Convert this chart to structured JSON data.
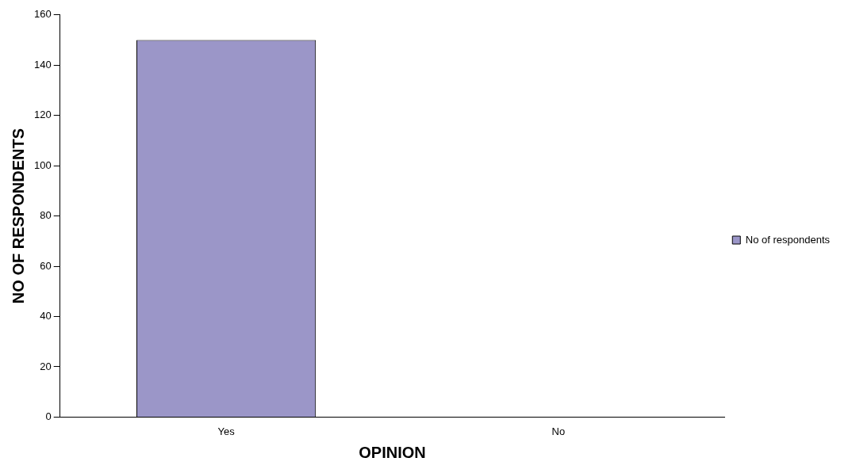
{
  "chart_data": {
    "type": "bar",
    "xlabel": "OPINION",
    "ylabel": "NO OF RESPONDENTS",
    "categories": [
      "Yes",
      "No"
    ],
    "series": [
      {
        "name": "No of respondents",
        "color": "#9b96c8",
        "values": [
          150,
          0
        ]
      }
    ],
    "ylim": [
      0,
      160
    ],
    "yticks": [
      0,
      20,
      40,
      60,
      80,
      100,
      120,
      140,
      160
    ],
    "grid": false,
    "legend": "right"
  }
}
